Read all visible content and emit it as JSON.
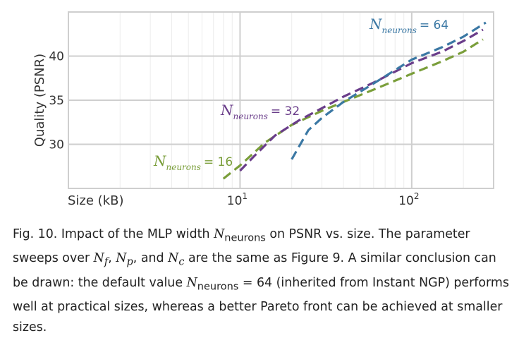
{
  "chart_data": {
    "type": "line",
    "title": "",
    "xlabel": "Size (kB)",
    "ylabel": "Quality (PSNR)",
    "x_scale": "log",
    "xlim": [
      1,
      300
    ],
    "ylim": [
      25,
      45
    ],
    "xticks": [
      {
        "value": 10,
        "label": "10",
        "exp": "1"
      },
      {
        "value": 100,
        "label": "10",
        "exp": "2"
      }
    ],
    "yticks": [
      30,
      35,
      40
    ],
    "grid": true,
    "series": [
      {
        "name": "16",
        "color": "#7a9e3a",
        "x": [
          8,
          10,
          14,
          20,
          30,
          40,
          60,
          100,
          150,
          200,
          260
        ],
        "y": [
          26.1,
          27.6,
          30.2,
          32.2,
          33.8,
          34.8,
          36.2,
          38.0,
          39.4,
          40.5,
          41.9
        ]
      },
      {
        "name": "32",
        "color": "#6a3d8a",
        "x": [
          10,
          12,
          16,
          22,
          30,
          40,
          60,
          100,
          150,
          200,
          260
        ],
        "y": [
          27.0,
          28.6,
          31.0,
          32.7,
          34.1,
          35.4,
          37.0,
          39.2,
          40.5,
          41.7,
          43.0
        ]
      },
      {
        "name": "64",
        "color": "#3b78a4",
        "x": [
          20,
          25,
          30,
          40,
          60,
          100,
          150,
          200,
          270
        ],
        "y": [
          28.3,
          31.6,
          33.0,
          34.8,
          36.9,
          39.6,
          41.0,
          42.2,
          43.8
        ]
      }
    ],
    "annotations": [
      {
        "id": "ann-64",
        "prefix": "N",
        "sub": "neurons",
        "value": "= 64",
        "color": "#3b78a4"
      },
      {
        "id": "ann-32",
        "prefix": "N",
        "sub": "neurons",
        "value": "= 32",
        "color": "#6a3d8a"
      },
      {
        "id": "ann-16",
        "prefix": "N",
        "sub": "neurons",
        "value": "= 16",
        "color": "#7a9e3a"
      }
    ]
  },
  "caption": {
    "p1": "Fig. 10.  Impact of the MLP width ",
    "n": "N",
    "sub_neurons": "neurons",
    "p2": " on PSNR vs. size. The parameter sweeps over ",
    "nf": "N",
    "nf_sub": "f",
    "comma1": ", ",
    "np": "N",
    "np_sub": "p",
    "p3": ", and ",
    "nc": "N",
    "nc_sub": "c",
    "p4": " are the same as Figure 9. A similar conclusion can be drawn: the default value ",
    "n2": "N",
    "sub_neurons2": "neurons",
    "p5": " = 64 (inherited from Instant NGP) performs well at practical sizes, whereas a better Pareto front can be achieved at smaller sizes."
  }
}
